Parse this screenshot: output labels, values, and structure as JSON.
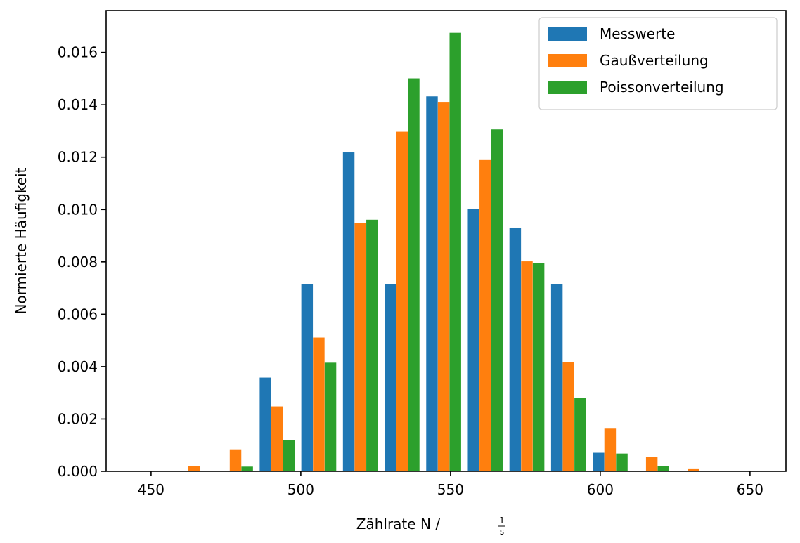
{
  "chart_data": {
    "type": "bar",
    "xlabel": "Zählrate N / ",
    "xlabel_unit_numerator": "1",
    "xlabel_unit_denominator": "s",
    "ylabel": "Normierte Häufigkeit",
    "xlim": [
      435,
      662
    ],
    "ylim": [
      0,
      0.0176
    ],
    "xticks": [
      450,
      500,
      550,
      600,
      650
    ],
    "yticks": [
      0.0,
      0.002,
      0.004,
      0.006,
      0.008,
      0.01,
      0.012,
      0.014,
      0.016
    ],
    "ytick_labels": [
      "0.000",
      "0.002",
      "0.004",
      "0.006",
      "0.008",
      "0.010",
      "0.012",
      "0.014",
      "0.016"
    ],
    "legend_position": "top-right",
    "grid": false,
    "bar_width": 3.86,
    "series": [
      {
        "name": "Messwerte",
        "color": "#1f77b4",
        "x": [
          446.5,
          460.4,
          474.3,
          488.2,
          502.1,
          516.0,
          529.9,
          543.8,
          557.7,
          571.6,
          585.5,
          599.4,
          613.3,
          627.2,
          641.1
        ],
        "values": [
          0,
          0,
          0,
          0.00358,
          0.00716,
          0.01218,
          0.00716,
          0.01432,
          0.01003,
          0.00931,
          0.00716,
          0.00071,
          0,
          0,
          0
        ]
      },
      {
        "name": "Gaußverteilung",
        "color": "#ff7f0e",
        "x": [
          450.4,
          464.3,
          478.2,
          492.1,
          506.0,
          519.9,
          533.8,
          547.7,
          561.6,
          575.5,
          589.4,
          603.3,
          617.2,
          631.1,
          645.0
        ],
        "values": [
          0,
          0.00021,
          0.00084,
          0.00248,
          0.00511,
          0.00948,
          0.01297,
          0.01411,
          0.01189,
          0.00802,
          0.00416,
          0.00163,
          0.00054,
          0.00011,
          0
        ]
      },
      {
        "name": "Poissonverteilung",
        "color": "#2ca02c",
        "x": [
          454.3,
          468.2,
          482.1,
          496.0,
          509.9,
          523.8,
          537.7,
          551.6,
          565.5,
          579.4,
          593.3,
          607.2,
          621.1,
          635.0,
          648.9
        ],
        "values": [
          0,
          0,
          0.00018,
          0.00119,
          0.00415,
          0.00961,
          0.01501,
          0.01675,
          0.01306,
          0.00795,
          0.0028,
          0.00068,
          0.00019,
          0,
          0
        ]
      }
    ]
  }
}
